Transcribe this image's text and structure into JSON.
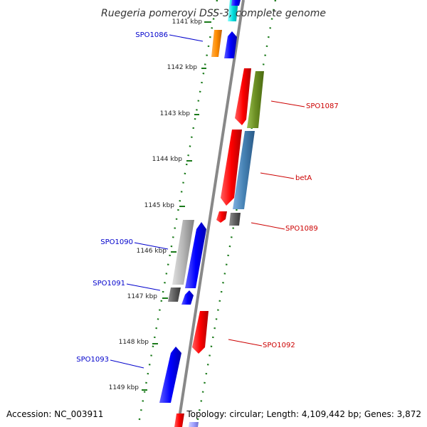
{
  "title": "Ruegeria pomeroyi DSS-3, complete genome",
  "accession": "Accession: NC_003911",
  "summary": "Topology: circular; Length: 4,109,442 bp; Genes: 3,872",
  "ticks": [
    "1141 kbp",
    "1142 kbp",
    "1143 kbp",
    "1144 kbp",
    "1145 kbp",
    "1146 kbp",
    "1147 kbp",
    "1148 kbp",
    "1149 kbp"
  ],
  "genes": [
    {
      "label": "SPO1086",
      "strand": "reverse",
      "color": "#0000cc"
    },
    {
      "label": "SPO1087",
      "strand": "forward",
      "color": "#cc0000"
    },
    {
      "label": "betA",
      "strand": "forward",
      "color": "#cc0000"
    },
    {
      "label": "SPO1089",
      "strand": "forward",
      "color": "#cc0000"
    },
    {
      "label": "SPO1090",
      "strand": "reverse",
      "color": "#0000cc"
    },
    {
      "label": "SPO1091",
      "strand": "reverse",
      "color": "#0000cc"
    },
    {
      "label": "SPO1092",
      "strand": "forward",
      "color": "#cc0000"
    },
    {
      "label": "SPO1093",
      "strand": "reverse",
      "color": "#0000cc"
    }
  ],
  "colors": {
    "backbone": "#888888",
    "ticks": "#1a7a1a",
    "forward_label": "#cc0000",
    "reverse_label": "#0000cc",
    "cds_forward": "#ff0000",
    "cds_reverse": "#0000ff",
    "orange": "#ff8c00",
    "olive": "#6b8e23",
    "steelblue": "#4682b4",
    "gray": "#999999",
    "darkgray": "#555555",
    "cyan": "#00cccc",
    "lavender": "#9999ff"
  }
}
